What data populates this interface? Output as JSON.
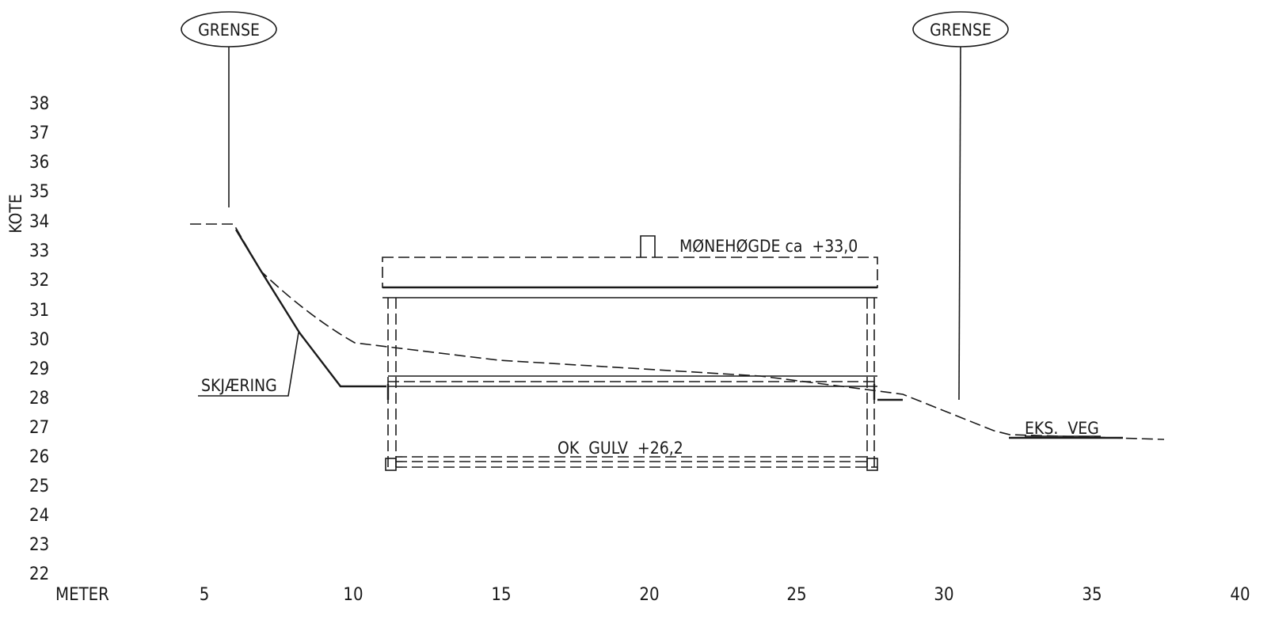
{
  "axes": {
    "y_title": "KOTE",
    "x_title": "METER",
    "y_ticks": [
      "38",
      "37",
      "36",
      "35",
      "34",
      "33",
      "32",
      "31",
      "30",
      "29",
      "28",
      "27",
      "26",
      "25",
      "24",
      "23",
      "22"
    ],
    "x_ticks": [
      "5",
      "10",
      "15",
      "20",
      "25",
      "30",
      "35",
      "40"
    ]
  },
  "labels": {
    "grense_left": "GRENSE",
    "grense_right": "GRENSE",
    "ridge_height": "MØNEHØGDE ca  +33,0",
    "floor_level": "OK  GULV  +26,2",
    "cutting": "SKJÆRING",
    "existing_road": "EKS.  VEG"
  }
}
